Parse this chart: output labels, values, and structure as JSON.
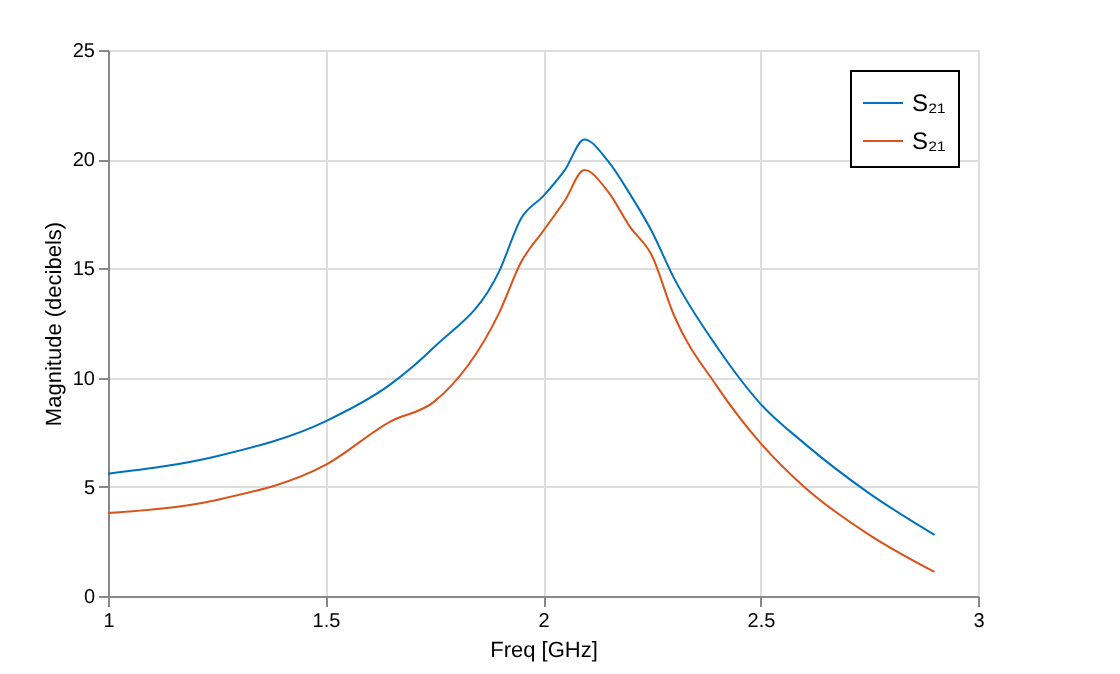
{
  "chart_data": {
    "type": "line",
    "xlabel": "Freq [GHz]",
    "ylabel": "Magnitude (decibels)",
    "x": [
      1,
      1.25,
      1.5,
      1.65,
      1.75,
      1.9,
      1.95,
      2.0,
      2.05,
      2.095,
      2.15,
      2.2,
      2.25,
      2.3,
      2.4,
      2.5,
      2.6,
      2.75,
      2.9
    ],
    "series": [
      {
        "name": "S₂₁",
        "color": "#0072bd",
        "values": [
          5.6,
          6.4,
          8.0,
          9.7,
          11.4,
          14.9,
          17.3,
          18.3,
          19.5,
          20.9,
          19.9,
          18.4,
          16.7,
          14.6,
          11.4,
          8.8,
          7.0,
          4.7,
          2.8
        ]
      },
      {
        "name": "S₂₁",
        "color": "#d95319",
        "values": [
          3.8,
          4.4,
          6.0,
          8.0,
          8.9,
          13.0,
          15.3,
          16.7,
          18.1,
          19.5,
          18.5,
          16.9,
          15.6,
          12.9,
          9.6,
          7.0,
          5.0,
          2.8,
          1.1
        ]
      }
    ],
    "xlim": [
      1,
      3
    ],
    "xticks": [
      1,
      1.5,
      2,
      2.5,
      3
    ],
    "ylim": [
      0,
      25
    ],
    "yticks": [
      0,
      5,
      10,
      15,
      20,
      25
    ],
    "grid": true,
    "legend": "top right"
  }
}
